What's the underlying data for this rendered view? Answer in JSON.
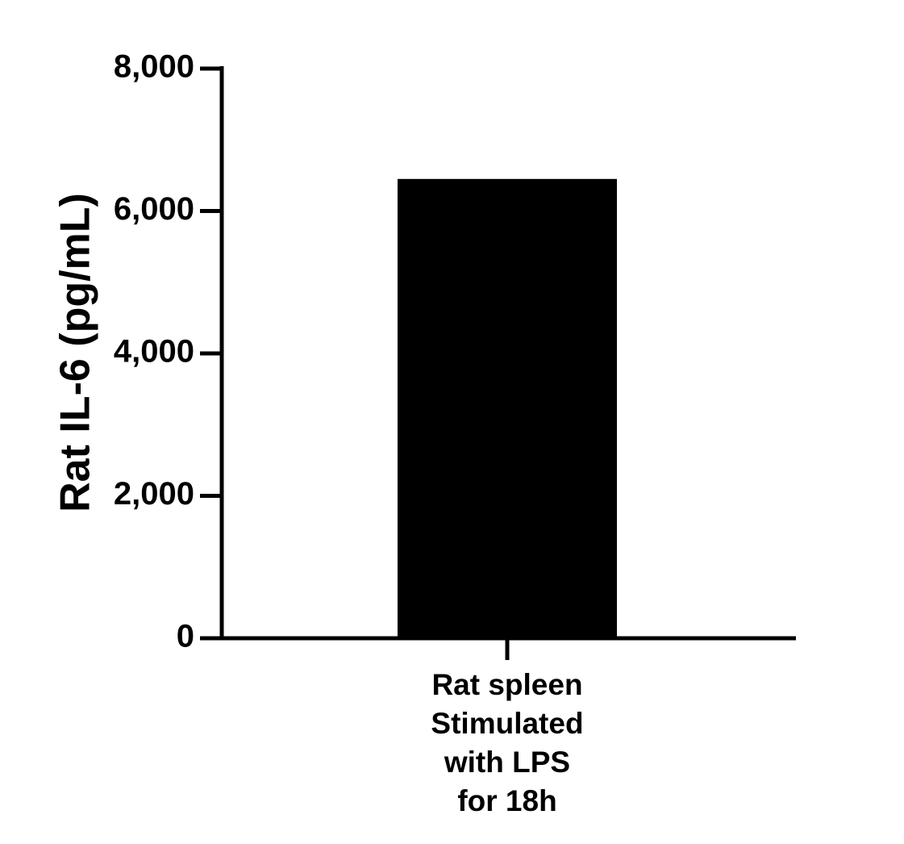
{
  "chart_data": {
    "type": "bar",
    "title": "",
    "xlabel": "",
    "ylabel": "Rat IL-6 (pg/mL)",
    "ylim": [
      0,
      8000
    ],
    "yticks": [
      0,
      2000,
      4000,
      6000,
      8000
    ],
    "ytick_labels": [
      "0",
      "2,000",
      "4,000",
      "6,000",
      "8,000"
    ],
    "categories": [
      {
        "lines": [
          "Rat spleen",
          "Stimulated",
          "with LPS",
          "for 18h"
        ]
      }
    ],
    "values": [
      6450
    ],
    "bar_color": "#000000",
    "grid": false,
    "legend": "none"
  }
}
